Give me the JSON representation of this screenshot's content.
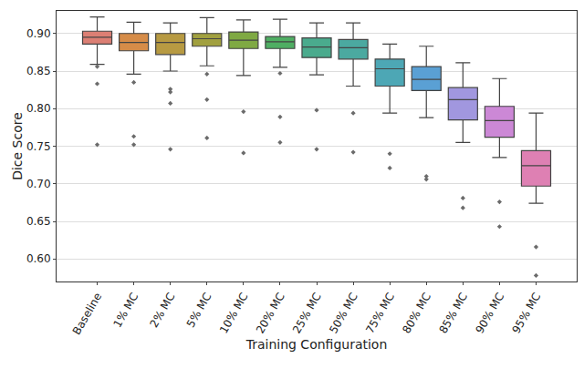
{
  "chart_data": {
    "type": "box",
    "x_label": "Training Configuration",
    "y_label": "Dice Score",
    "categories": [
      "Baseline",
      "1% MC",
      "2% MC",
      "5% MC",
      "10% MC",
      "20% MC",
      "25% MC",
      "50% MC",
      "75% MC",
      "80% MC",
      "85% MC",
      "90% MC",
      "95% MC"
    ],
    "colors": [
      "#dc7f74",
      "#d68c48",
      "#b79a42",
      "#a1a03f",
      "#7fa943",
      "#4fae63",
      "#4aab8d",
      "#4ba9a0",
      "#4da7b5",
      "#5aa0d4",
      "#a197df",
      "#cc88d6",
      "#de80b3"
    ],
    "lowerfence": [
      0.859,
      0.846,
      0.85,
      0.857,
      0.844,
      0.855,
      0.845,
      0.83,
      0.794,
      0.788,
      0.755,
      0.735,
      0.674
    ],
    "q1": [
      0.886,
      0.877,
      0.872,
      0.883,
      0.88,
      0.88,
      0.868,
      0.866,
      0.83,
      0.824,
      0.785,
      0.762,
      0.697
    ],
    "median": [
      0.895,
      0.888,
      0.888,
      0.893,
      0.891,
      0.889,
      0.882,
      0.881,
      0.853,
      0.839,
      0.812,
      0.784,
      0.724
    ],
    "q3": [
      0.903,
      0.9,
      0.9,
      0.9,
      0.902,
      0.896,
      0.894,
      0.892,
      0.866,
      0.856,
      0.828,
      0.803,
      0.744
    ],
    "upperfence": [
      0.922,
      0.915,
      0.914,
      0.921,
      0.918,
      0.919,
      0.914,
      0.914,
      0.886,
      0.883,
      0.861,
      0.84,
      0.794
    ],
    "outliers": [
      [
        0.856,
        0.833,
        0.752
      ],
      [
        0.835,
        0.763,
        0.752
      ],
      [
        0.826,
        0.822,
        0.807,
        0.746
      ],
      [
        0.846,
        0.812,
        0.761
      ],
      [
        0.796,
        0.741
      ],
      [
        0.847,
        0.789,
        0.755
      ],
      [
        0.798,
        0.746
      ],
      [
        0.794,
        0.742
      ],
      [
        0.74,
        0.721
      ],
      [
        0.71,
        0.706
      ],
      [
        0.681,
        0.668
      ],
      [
        0.676,
        0.643
      ],
      [
        0.616,
        0.578
      ]
    ],
    "ylim": [
      0.57,
      0.93
    ],
    "yticks": [
      {
        "value": 0.6,
        "label": "0.60"
      },
      {
        "value": 0.65,
        "label": "0.65"
      },
      {
        "value": 0.7,
        "label": "0.70"
      },
      {
        "value": 0.75,
        "label": "0.75"
      },
      {
        "value": 0.8,
        "label": "0.80"
      },
      {
        "value": 0.85,
        "label": "0.85"
      },
      {
        "value": 0.9,
        "label": "0.90"
      }
    ],
    "grid": true
  }
}
